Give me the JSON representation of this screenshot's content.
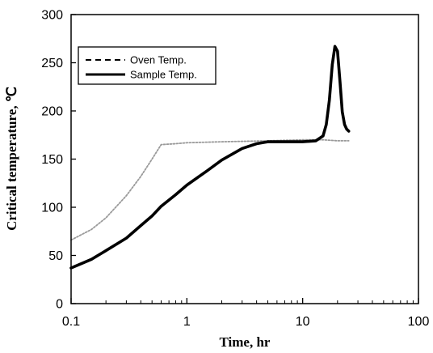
{
  "chart_data": {
    "type": "line",
    "xlabel": "Time, hr",
    "ylabel": "Critical temperature, ℃",
    "x_scale": "log",
    "xlim": [
      0.1,
      100
    ],
    "ylim": [
      0,
      300
    ],
    "x_ticks": [
      0.1,
      1,
      10,
      100
    ],
    "x_tick_labels": [
      "0.1",
      "1",
      "10",
      "100"
    ],
    "y_ticks": [
      0,
      50,
      100,
      150,
      200,
      250,
      300
    ],
    "y_tick_labels": [
      "0",
      "50",
      "100",
      "150",
      "200",
      "250",
      "300"
    ],
    "grid": false,
    "legend_position": "top-left",
    "series": [
      {
        "name": "Oven Temp.",
        "style": "dashed",
        "color": "#9a9a9a",
        "x": [
          0.1,
          0.15,
          0.2,
          0.3,
          0.4,
          0.5,
          0.6,
          0.8,
          1,
          2,
          5,
          10,
          15,
          20,
          25
        ],
        "y": [
          66,
          77,
          89,
          112,
          132,
          150,
          165,
          166,
          167,
          168,
          169,
          170,
          170,
          169,
          169
        ]
      },
      {
        "name": "Sample Temp.",
        "style": "solid",
        "color": "#000000",
        "x": [
          0.1,
          0.15,
          0.2,
          0.3,
          0.4,
          0.5,
          0.6,
          0.8,
          1,
          1.5,
          2,
          3,
          4,
          5,
          7,
          10,
          13,
          15,
          16,
          17,
          18,
          19,
          20,
          21,
          22,
          23,
          24,
          25
        ],
        "y": [
          37,
          46,
          55,
          68,
          81,
          91,
          101,
          113,
          123,
          138,
          149,
          161,
          166,
          168,
          168,
          168,
          169,
          174,
          186,
          211,
          248,
          267,
          262,
          230,
          199,
          186,
          181,
          179
        ]
      }
    ]
  }
}
